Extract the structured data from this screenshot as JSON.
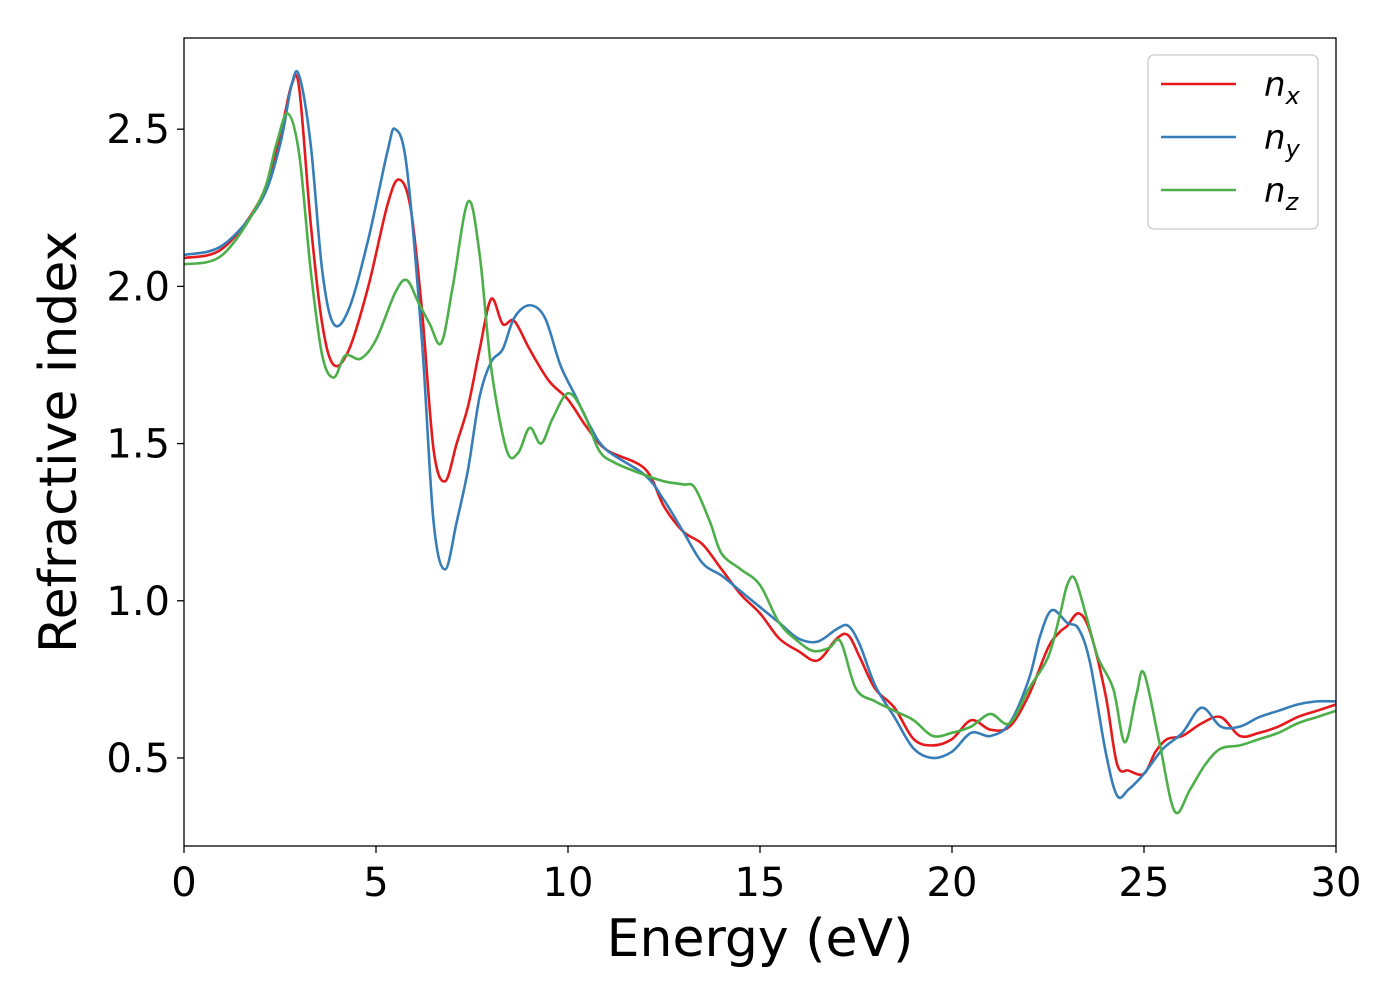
{
  "chart_data": {
    "type": "line",
    "title": "",
    "xlabel": "Energy (eV)",
    "ylabel": "Refractive index",
    "xlim": [
      0,
      30
    ],
    "ylim": [
      0.22,
      2.79
    ],
    "xticks": [
      0,
      5,
      10,
      15,
      20,
      25,
      30
    ],
    "xtick_labels": [
      "0",
      "5",
      "10",
      "15",
      "20",
      "25",
      "30"
    ],
    "yticks": [
      0.5,
      1.0,
      1.5,
      2.0,
      2.5
    ],
    "ytick_labels": [
      "0.5",
      "1.0",
      "1.5",
      "2.0",
      "2.5"
    ],
    "grid": false,
    "legend_position": "top-right",
    "series": [
      {
        "name": "n",
        "sub": "x",
        "color": "#e41a1c",
        "x": [
          0,
          1,
          2,
          2.5,
          2.8,
          3.0,
          3.3,
          3.6,
          3.9,
          4.3,
          4.8,
          5.3,
          5.6,
          5.9,
          6.2,
          6.5,
          6.8,
          7.1,
          7.4,
          7.7,
          8.0,
          8.3,
          8.6,
          9.0,
          9.5,
          10.0,
          10.5,
          11.0,
          12.0,
          12.5,
          13.0,
          13.5,
          14.0,
          14.5,
          15.0,
          15.5,
          16.0,
          16.5,
          17.0,
          17.3,
          17.6,
          18.0,
          18.5,
          19.0,
          19.5,
          20.0,
          20.5,
          21.0,
          21.5,
          22.0,
          22.5,
          22.8,
          23.0,
          23.3,
          23.6,
          24.0,
          24.3,
          24.6,
          25.0,
          25.3,
          25.6,
          26.0,
          26.5,
          27.0,
          27.5,
          28.0,
          28.5,
          29.0,
          29.5,
          30.0
        ],
        "y": [
          2.09,
          2.12,
          2.28,
          2.48,
          2.64,
          2.63,
          2.2,
          1.88,
          1.75,
          1.8,
          2.0,
          2.26,
          2.34,
          2.25,
          1.92,
          1.48,
          1.38,
          1.5,
          1.62,
          1.8,
          1.96,
          1.88,
          1.89,
          1.8,
          1.7,
          1.64,
          1.55,
          1.48,
          1.42,
          1.3,
          1.22,
          1.18,
          1.1,
          1.02,
          0.96,
          0.88,
          0.84,
          0.81,
          0.88,
          0.89,
          0.82,
          0.72,
          0.66,
          0.56,
          0.54,
          0.56,
          0.62,
          0.59,
          0.6,
          0.7,
          0.85,
          0.9,
          0.92,
          0.96,
          0.9,
          0.7,
          0.48,
          0.46,
          0.45,
          0.52,
          0.56,
          0.57,
          0.61,
          0.63,
          0.57,
          0.58,
          0.6,
          0.63,
          0.65,
          0.67
        ]
      },
      {
        "name": "n",
        "sub": "y",
        "color": "#377eb8",
        "x": [
          0,
          1,
          2,
          2.5,
          2.8,
          3.0,
          3.3,
          3.6,
          3.9,
          4.3,
          4.8,
          5.3,
          5.5,
          5.8,
          6.2,
          6.5,
          6.8,
          7.1,
          7.4,
          7.7,
          8.0,
          8.3,
          8.6,
          9.0,
          9.4,
          9.8,
          10.2,
          10.6,
          11.0,
          12.0,
          12.5,
          13.0,
          13.5,
          14.0,
          14.5,
          15.0,
          15.5,
          16.0,
          16.5,
          17.0,
          17.3,
          17.6,
          18.0,
          18.5,
          19.0,
          19.5,
          20.0,
          20.5,
          21.0,
          21.5,
          22.0,
          22.3,
          22.6,
          23.0,
          23.3,
          23.6,
          24.0,
          24.3,
          24.6,
          25.0,
          25.5,
          26.0,
          26.5,
          27.0,
          27.5,
          28.0,
          28.5,
          29.0,
          29.5,
          30.0
        ],
        "y": [
          2.1,
          2.13,
          2.27,
          2.45,
          2.64,
          2.67,
          2.45,
          2.05,
          1.88,
          1.93,
          2.15,
          2.43,
          2.5,
          2.38,
          1.82,
          1.25,
          1.1,
          1.25,
          1.42,
          1.65,
          1.76,
          1.8,
          1.9,
          1.94,
          1.9,
          1.75,
          1.65,
          1.55,
          1.48,
          1.4,
          1.32,
          1.22,
          1.12,
          1.08,
          1.03,
          0.98,
          0.93,
          0.88,
          0.87,
          0.91,
          0.92,
          0.86,
          0.73,
          0.63,
          0.53,
          0.5,
          0.52,
          0.58,
          0.57,
          0.61,
          0.75,
          0.89,
          0.97,
          0.93,
          0.91,
          0.8,
          0.52,
          0.38,
          0.4,
          0.45,
          0.53,
          0.58,
          0.66,
          0.6,
          0.6,
          0.63,
          0.65,
          0.67,
          0.68,
          0.68
        ]
      },
      {
        "name": "n",
        "sub": "z",
        "color": "#4daf4a",
        "x": [
          0,
          1,
          2,
          2.4,
          2.7,
          3.0,
          3.3,
          3.6,
          3.9,
          4.2,
          4.6,
          5.0,
          5.5,
          5.8,
          6.1,
          6.4,
          6.7,
          7.0,
          7.4,
          7.7,
          8.0,
          8.4,
          8.7,
          9.0,
          9.3,
          9.6,
          10.0,
          10.4,
          10.8,
          11.2,
          12.0,
          12.5,
          13.0,
          13.3,
          13.7,
          14.0,
          14.5,
          15.0,
          15.5,
          16.0,
          16.4,
          16.8,
          17.1,
          17.5,
          18.0,
          18.5,
          19.0,
          19.5,
          20.0,
          20.5,
          21.0,
          21.5,
          22.0,
          22.5,
          22.8,
          23.0,
          23.2,
          23.5,
          23.8,
          24.2,
          24.5,
          24.8,
          25.0,
          25.4,
          25.8,
          26.2,
          26.6,
          27.0,
          27.5,
          28.0,
          28.5,
          29.0,
          29.5,
          30.0
        ],
        "y": [
          2.07,
          2.1,
          2.28,
          2.45,
          2.55,
          2.42,
          2.05,
          1.78,
          1.71,
          1.78,
          1.77,
          1.83,
          1.98,
          2.02,
          1.95,
          1.88,
          1.82,
          2.0,
          2.27,
          2.1,
          1.74,
          1.48,
          1.47,
          1.55,
          1.5,
          1.58,
          1.66,
          1.6,
          1.48,
          1.44,
          1.4,
          1.38,
          1.37,
          1.36,
          1.25,
          1.15,
          1.1,
          1.05,
          0.93,
          0.87,
          0.84,
          0.85,
          0.87,
          0.72,
          0.68,
          0.65,
          0.62,
          0.57,
          0.58,
          0.6,
          0.64,
          0.61,
          0.72,
          0.82,
          0.95,
          1.05,
          1.07,
          0.95,
          0.82,
          0.72,
          0.55,
          0.7,
          0.77,
          0.55,
          0.33,
          0.4,
          0.48,
          0.53,
          0.54,
          0.56,
          0.58,
          0.61,
          0.63,
          0.65
        ]
      }
    ]
  }
}
